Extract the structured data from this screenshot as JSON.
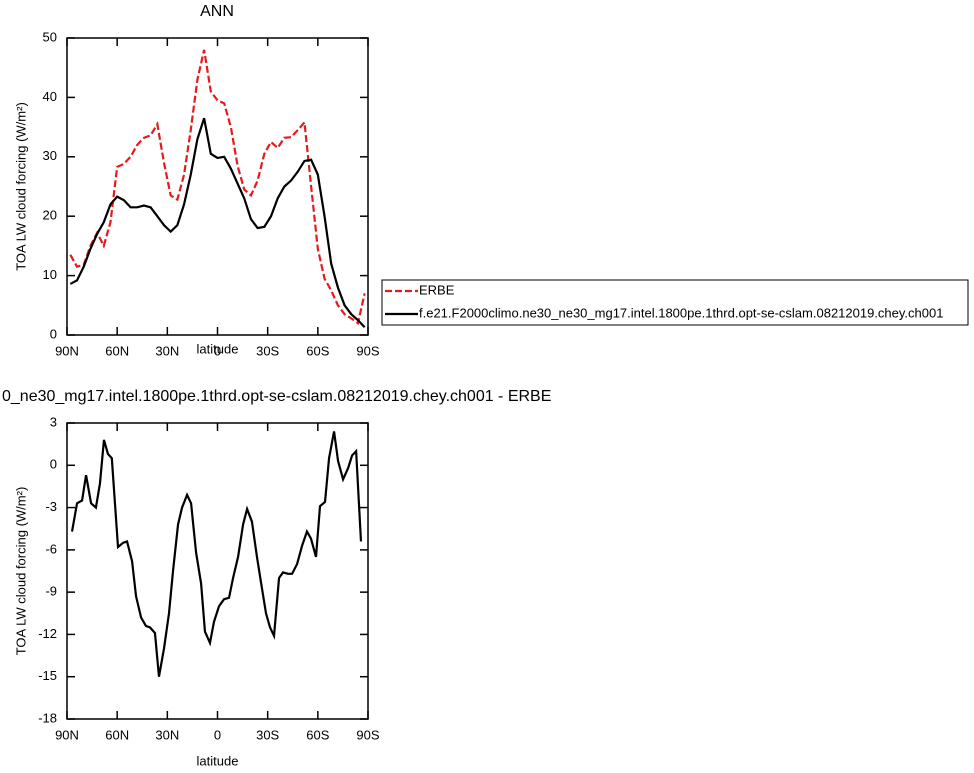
{
  "chart_data": [
    {
      "type": "line",
      "title": "ANN",
      "xlabel": "latitude",
      "ylabel": "TOA LW cloud forcing (W/m²)",
      "x": [
        88,
        84,
        80,
        76,
        72,
        68,
        64,
        60,
        56,
        52,
        48,
        44,
        40,
        36,
        32,
        28,
        24,
        20,
        16,
        12,
        8,
        4,
        0,
        -4,
        -8,
        -12,
        -16,
        -20,
        -24,
        -28,
        -32,
        -36,
        -40,
        -44,
        -48,
        -52,
        -56,
        -60,
        -64,
        -68,
        -72,
        -76,
        -80,
        -84,
        -88
      ],
      "series": [
        {
          "name": "ERBE",
          "color": "#e41a1c",
          "linestyle": "dashed",
          "values": [
            13.5,
            11.5,
            11.8,
            15,
            17.2,
            15,
            19,
            28.3,
            28.8,
            30,
            32,
            33.2,
            33.6,
            35.5,
            29,
            23.5,
            22.8,
            27,
            34.5,
            43,
            48,
            41,
            39.5,
            39,
            35,
            28.5,
            24.5,
            23.5,
            26,
            30.5,
            32.5,
            31.5,
            33.2,
            33.3,
            34.5,
            35.8,
            25,
            14.5,
            9.5,
            7.5,
            5,
            3.5,
            2.8,
            2,
            7
          ]
        },
        {
          "name": "f.e21.F2000climo.ne30_ne30_mg17.intel.1800pe.1thrd.opt-se-cslam.08212019.chey.ch001",
          "color": "#000000",
          "linestyle": "solid",
          "values": [
            8.6,
            9.2,
            11.5,
            14.5,
            17,
            19,
            22,
            23.3,
            22.7,
            21.5,
            21.5,
            21.8,
            21.5,
            20,
            18.5,
            17.4,
            18.5,
            22,
            27,
            33,
            36.5,
            30.5,
            29.8,
            30,
            28,
            25.5,
            23,
            19.5,
            18,
            18.2,
            20,
            23,
            25,
            26,
            27.5,
            29.3,
            29.5,
            27,
            20,
            12,
            8,
            5,
            3.5,
            2.5,
            1.3
          ]
        }
      ],
      "xlim": [
        90,
        -90
      ],
      "xticks": [
        {
          "value": 90,
          "label": "90N"
        },
        {
          "value": 60,
          "label": "60N"
        },
        {
          "value": 30,
          "label": "30N"
        },
        0,
        {
          "value": -30,
          "label": "30S"
        },
        {
          "value": -60,
          "label": "60S"
        },
        {
          "value": -90,
          "label": "90S"
        }
      ],
      "ylim": [
        0,
        50
      ],
      "yticks": [
        0,
        10,
        20,
        30,
        40,
        50
      ],
      "legend": "right"
    },
    {
      "type": "line",
      "title": "0_ne30_mg17.intel.1800pe.1thrd.opt-se-cslam.08212019.chey.ch001 - ERBE",
      "xlabel": "latitude",
      "ylabel": "TOA LW cloud forcing (W/m²)",
      "x": [
        87.0,
        84.0,
        81.0,
        78.6,
        75.6,
        72.7,
        70.3,
        67.9,
        65.5,
        63.2,
        59.5,
        56.5,
        54.1,
        51.1,
        48.7,
        45.7,
        42.8,
        40.4,
        37.4,
        35.0,
        32.0,
        29.0,
        26.6,
        23.6,
        21.2,
        18.2,
        15.8,
        12.8,
        9.8,
        7.5,
        4.5,
        2.1,
        -0.9,
        -3.9,
        -6.9,
        -9.3,
        -12.3,
        -15.3,
        -17.7,
        -20.6,
        -23.6,
        -26.0,
        -29.0,
        -31.4,
        -33.8,
        -36.8,
        -39.2,
        -42.2,
        -44.6,
        -47.6,
        -50.6,
        -53.5,
        -55.9,
        -58.9,
        -61.3,
        -64.3,
        -66.7,
        -69.7,
        -72.1,
        -75.1,
        -78.1,
        -80.5,
        -82.9,
        -85.8
      ],
      "series": [
        {
          "color": "#000000",
          "linestyle": "solid",
          "values": [
            -4.7,
            -2.7,
            -2.5,
            -0.7,
            -2.7,
            -3,
            -1.3,
            1.8,
            0.8,
            0.5,
            -5.8,
            -5.5,
            -5.4,
            -6.8,
            -9.3,
            -10.8,
            -11.4,
            -11.5,
            -11.9,
            -15,
            -13,
            -10.5,
            -7.5,
            -4.2,
            -3,
            -2.1,
            -2.7,
            -6.2,
            -8.4,
            -11.8,
            -12.6,
            -11.1,
            -10,
            -9.5,
            -9.4,
            -8,
            -6.5,
            -4.2,
            -3.1,
            -4,
            -6.5,
            -8.3,
            -10.5,
            -11.5,
            -12.1,
            -8,
            -7.6,
            -7.7,
            -7.7,
            -7,
            -5.7,
            -4.7,
            -5.2,
            -6.5,
            -2.9,
            -2.6,
            0.5,
            2.4,
            0.3,
            -1,
            -0.2,
            0.7,
            1,
            -5.4
          ]
        }
      ],
      "xlim": [
        90,
        -90
      ],
      "xticks": [
        {
          "value": 90,
          "label": "90N"
        },
        {
          "value": 60,
          "label": "60N"
        },
        {
          "value": 30,
          "label": "30N"
        },
        0,
        {
          "value": -30,
          "label": "30S"
        },
        {
          "value": -60,
          "label": "60S"
        },
        {
          "value": -90,
          "label": "90S"
        }
      ],
      "ylim": [
        -18,
        3
      ],
      "yticks": [
        -18,
        -15,
        -12,
        -9,
        -6,
        -3,
        0,
        3
      ]
    }
  ]
}
